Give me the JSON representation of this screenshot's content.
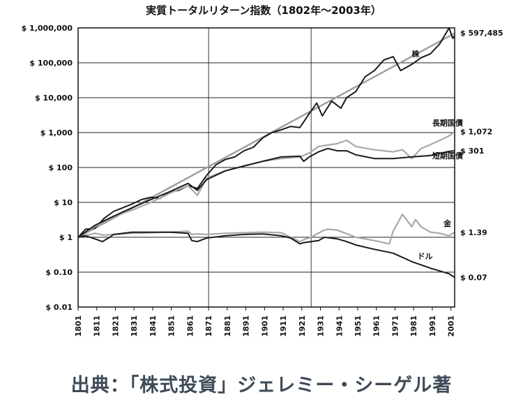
{
  "caption": "出典：「株式投資」ジェレミー・シーゲル著",
  "chart_data": {
    "type": "line",
    "title": "実質トータルリターン指数（1802年〜2003年）",
    "y_scale": "log",
    "ylim": [
      0.01,
      1000000
    ],
    "xlim": [
      1801,
      2003
    ],
    "grid": true,
    "y_ticks": [
      {
        "value": 1000000,
        "label": "$ 1,000,000"
      },
      {
        "value": 100000,
        "label": "$ 100,000"
      },
      {
        "value": 10000,
        "label": "$ 10,000"
      },
      {
        "value": 1000,
        "label": "$ 1,000"
      },
      {
        "value": 100,
        "label": "$ 100"
      },
      {
        "value": 10,
        "label": "$ 10"
      },
      {
        "value": 1,
        "label": "$ 1"
      },
      {
        "value": 0.1,
        "label": "$ 0.10"
      },
      {
        "value": 0.01,
        "label": "$ 0.01"
      }
    ],
    "x_ticks": [
      "1801",
      "1811",
      "1821",
      "1831",
      "1841",
      "1851",
      "1861",
      "1871",
      "1881",
      "1891",
      "1901",
      "1911",
      "1921",
      "1931",
      "1941",
      "1951",
      "1961",
      "1971",
      "1981",
      "1991",
      "2001"
    ],
    "series": [
      {
        "name": "株",
        "end_label": "$ 597,485",
        "color": "#1a1a1a",
        "x": [
          1801,
          1805,
          1810,
          1815,
          1820,
          1825,
          1830,
          1835,
          1840,
          1845,
          1850,
          1855,
          1860,
          1865,
          1870,
          1875,
          1880,
          1885,
          1890,
          1895,
          1900,
          1905,
          1910,
          1915,
          1920,
          1925,
          1929,
          1932,
          1937,
          1942,
          1945,
          1950,
          1955,
          1960,
          1965,
          1970,
          1974,
          1980,
          1985,
          1990,
          1995,
          2000,
          2002,
          2003
        ],
        "y": [
          1,
          1.7,
          1.8,
          3.5,
          5.5,
          7,
          9,
          12,
          14,
          13,
          20,
          22,
          30,
          25,
          60,
          120,
          170,
          200,
          300,
          380,
          700,
          1000,
          1200,
          1500,
          1400,
          3500,
          7000,
          3000,
          8000,
          5000,
          10000,
          15000,
          40000,
          60000,
          120000,
          150000,
          60000,
          90000,
          140000,
          180000,
          350000,
          1000000,
          500000,
          597485
        ]
      },
      {
        "name": "長期国債",
        "end_label": "$ 1,072",
        "color": "#a8a8a8",
        "x": [
          1801,
          1810,
          1820,
          1830,
          1840,
          1850,
          1860,
          1865,
          1870,
          1880,
          1890,
          1900,
          1910,
          1920,
          1925,
          1930,
          1940,
          1945,
          1950,
          1960,
          1970,
          1975,
          1980,
          1985,
          1990,
          1995,
          2000,
          2003
        ],
        "y": [
          1,
          2,
          4,
          6,
          10,
          18,
          30,
          16,
          50,
          80,
          110,
          150,
          180,
          200,
          260,
          400,
          480,
          600,
          400,
          320,
          280,
          320,
          180,
          350,
          450,
          600,
          800,
          1072
        ]
      },
      {
        "name": "短期国債",
        "end_label": "$ 301",
        "color": "#1a1a1a",
        "x": [
          1801,
          1810,
          1820,
          1830,
          1840,
          1850,
          1860,
          1865,
          1870,
          1880,
          1890,
          1900,
          1910,
          1920,
          1922,
          1925,
          1930,
          1935,
          1940,
          1945,
          1950,
          1960,
          1970,
          1980,
          1990,
          2000,
          2003
        ],
        "y": [
          1,
          2.2,
          4,
          7,
          12,
          20,
          35,
          22,
          45,
          80,
          110,
          150,
          200,
          210,
          150,
          200,
          280,
          350,
          300,
          300,
          230,
          180,
          180,
          200,
          220,
          290,
          301
        ]
      },
      {
        "name": "金",
        "end_label": "$ 1.39",
        "color": "#a8a8a8",
        "x": [
          1801,
          1810,
          1815,
          1820,
          1830,
          1840,
          1850,
          1860,
          1862,
          1865,
          1870,
          1880,
          1890,
          1900,
          1910,
          1920,
          1923,
          1925,
          1933,
          1935,
          1940,
          1950,
          1960,
          1968,
          1970,
          1975,
          1980,
          1982,
          1985,
          1990,
          1995,
          2000,
          2003
        ],
        "y": [
          1,
          1.3,
          1.15,
          1.2,
          1.3,
          1.35,
          1.4,
          1.5,
          1.2,
          1.25,
          1.2,
          1.3,
          1.35,
          1.4,
          1.35,
          0.75,
          0.9,
          0.95,
          1.6,
          1.7,
          1.6,
          1.0,
          0.8,
          0.65,
          1.5,
          4.5,
          2.0,
          3.2,
          2.0,
          1.4,
          1.3,
          1.1,
          1.39
        ]
      },
      {
        "name": "ドル",
        "end_label": "$ 0.07",
        "color": "#1a1a1a",
        "x": [
          1801,
          1805,
          1810,
          1814,
          1818,
          1820,
          1830,
          1840,
          1850,
          1860,
          1862,
          1865,
          1870,
          1880,
          1890,
          1900,
          1910,
          1915,
          1920,
          1922,
          1930,
          1933,
          1940,
          1945,
          1950,
          1960,
          1970,
          1980,
          1990,
          2000,
          2003
        ],
        "y": [
          1,
          1.1,
          0.9,
          0.75,
          1.0,
          1.2,
          1.4,
          1.4,
          1.4,
          1.3,
          0.8,
          0.75,
          0.95,
          1.1,
          1.2,
          1.25,
          1.1,
          0.95,
          0.65,
          0.7,
          0.8,
          1.0,
          0.9,
          0.75,
          0.6,
          0.45,
          0.35,
          0.2,
          0.13,
          0.09,
          0.07
        ]
      }
    ],
    "trend_line": {
      "x": [
        1801,
        2003
      ],
      "y": [
        1,
        700000
      ],
      "color": "#9c9c9c"
    }
  }
}
